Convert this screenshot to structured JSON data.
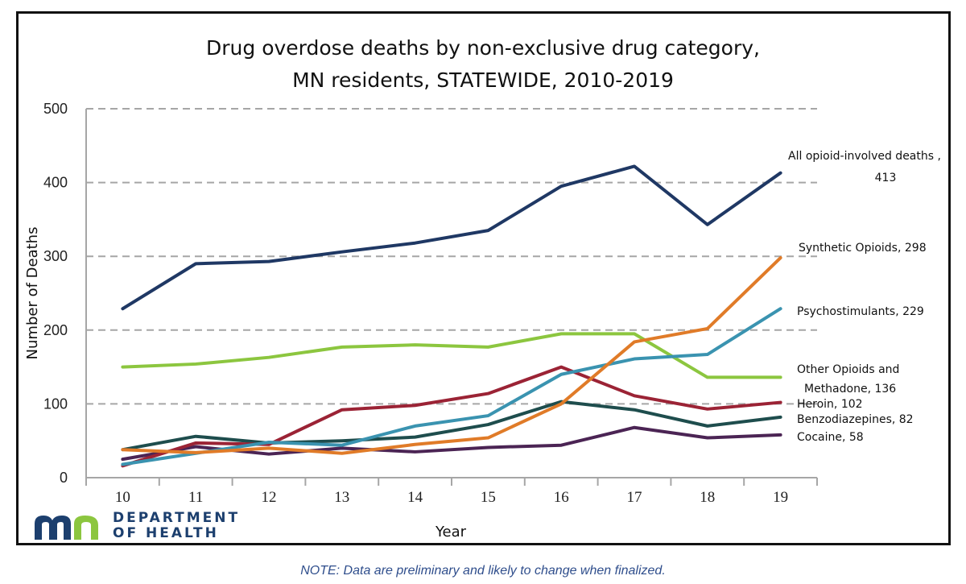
{
  "chart_data": {
    "type": "line",
    "title": [
      "Drug overdose deaths by non-exclusive drug category,",
      "MN residents, STATEWIDE, 2010-2019"
    ],
    "xlabel": "Year",
    "ylabel": "Number of Deaths",
    "categories": [
      "10",
      "11",
      "12",
      "13",
      "14",
      "15",
      "16",
      "17",
      "18",
      "19"
    ],
    "ylim": [
      0,
      500
    ],
    "yticks": [
      0,
      100,
      200,
      300,
      400,
      500
    ],
    "grid": "horizontal dashed",
    "legend": "direct labels at right end of lines",
    "series": [
      {
        "name": "All opioid-involved deaths",
        "label": [
          "All opioid-involved deaths ,",
          "413"
        ],
        "color": "#1f3864",
        "values": [
          229,
          290,
          293,
          306,
          318,
          335,
          395,
          422,
          343,
          413
        ]
      },
      {
        "name": "Synthetic Opioids",
        "label": [
          "Synthetic Opioids, 298"
        ],
        "color": "#e07b28",
        "values": [
          38,
          34,
          40,
          33,
          45,
          54,
          100,
          184,
          202,
          298
        ]
      },
      {
        "name": "Psychostimulants",
        "label": [
          "Psychostimulants, 229"
        ],
        "color": "#3a93b0",
        "values": [
          18,
          33,
          48,
          44,
          70,
          84,
          140,
          161,
          167,
          229
        ]
      },
      {
        "name": "Other Opioids and Methadone",
        "label": [
          "Other Opioids and",
          "Methadone, 136"
        ],
        "color": "#8cc63f",
        "values": [
          150,
          154,
          163,
          177,
          180,
          177,
          195,
          195,
          136,
          136
        ]
      },
      {
        "name": "Heroin",
        "label": [
          "Heroin, 102"
        ],
        "color": "#9b2335",
        "values": [
          16,
          47,
          45,
          92,
          98,
          114,
          150,
          111,
          93,
          102
        ]
      },
      {
        "name": "Benzodiazepines",
        "label": [
          "Benzodiazepines, 82"
        ],
        "color": "#1e4d4d",
        "values": [
          38,
          56,
          47,
          50,
          55,
          72,
          103,
          92,
          70,
          82
        ]
      },
      {
        "name": "Cocaine",
        "label": [
          "Cocaine, 58"
        ],
        "color": "#4b2454",
        "values": [
          25,
          42,
          32,
          40,
          35,
          41,
          44,
          68,
          54,
          58
        ]
      }
    ]
  },
  "logo": {
    "text": [
      "DEPARTMENT",
      "OF HEALTH"
    ],
    "colors": {
      "m": "#1c3f6e",
      "n": "#8cc63f"
    }
  },
  "note": "NOTE: Data are preliminary and likely to change when finalized."
}
